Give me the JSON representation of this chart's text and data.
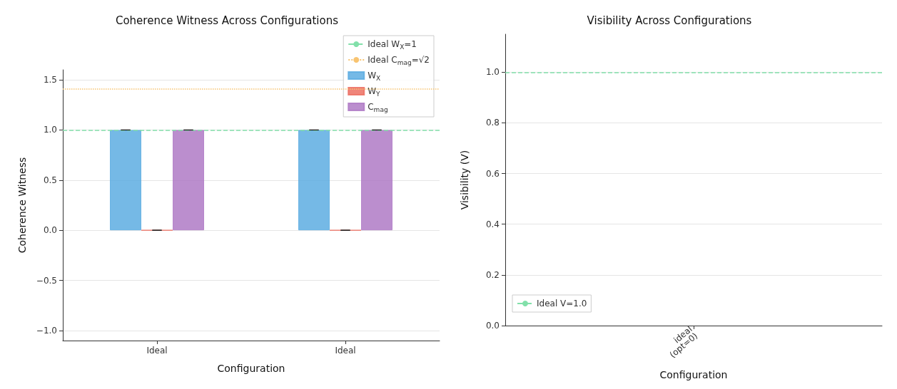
{
  "chart_data": [
    {
      "type": "bar",
      "title": "Coherence Witness Across Configurations",
      "xlabel": "Configuration",
      "ylabel": "Coherence Witness",
      "categories": [
        "Ideal",
        "Ideal"
      ],
      "series": [
        {
          "name": "W$_{X}$",
          "color": "#5dade2",
          "values": [
            1.0,
            1.0
          ],
          "errors": [
            0,
            0
          ]
        },
        {
          "name": "W$_{Y}$",
          "color": "#ec7063",
          "values": [
            0,
            0
          ],
          "errors": [
            0,
            0
          ]
        },
        {
          "name": "C$_{mag}$",
          "color": "#af7ac5",
          "values": [
            1.0,
            1.0
          ],
          "errors": [
            0,
            0
          ]
        }
      ],
      "ref_lines": [
        {
          "axis": "y",
          "value": 1,
          "label": "Ideal W$_{X}$=1",
          "color": "#82e0aa",
          "line_style": "dashed"
        },
        {
          "axis": "y",
          "value": 1.414,
          "label": "Ideal C$_{mag}$=√2",
          "color": "#f8c471",
          "line_style": "dotted"
        }
      ],
      "ylim": [
        -1.1,
        1.6
      ],
      "yticks": [
        {
          "value": -1,
          "label": "−1.0"
        },
        {
          "value": -0.5,
          "label": "−0.5"
        },
        {
          "value": 0,
          "label": "0.0"
        },
        {
          "value": 0.5,
          "label": "0.5"
        },
        {
          "value": 1,
          "label": "1.0"
        },
        {
          "value": 1.5,
          "label": "1.5"
        }
      ],
      "grid": "y",
      "legend": "top right"
    },
    {
      "type": "bar",
      "title": "Visibility Across Configurations",
      "xlabel": "Configuration",
      "ylabel": "Visibility (V)",
      "categories": [
        "ideal\n(opt=0)"
      ],
      "values": [
        null
      ],
      "ref_lines": [
        {
          "axis": "y",
          "value": 1.0,
          "label": "Ideal V=1.0",
          "color": "#82e0aa",
          "line_style": "dashed"
        }
      ],
      "ylim": [
        0,
        1.15
      ],
      "yticks": [
        {
          "value": 0,
          "label": "0.0"
        },
        {
          "value": 0.2,
          "label": "0.2"
        },
        {
          "value": 0.4,
          "label": "0.4"
        },
        {
          "value": 0.6,
          "label": "0.6"
        },
        {
          "value": 0.8,
          "label": "0.8"
        },
        {
          "value": 1.0,
          "label": "1.0"
        }
      ],
      "grid": "y",
      "legend": "bottom left"
    }
  ]
}
